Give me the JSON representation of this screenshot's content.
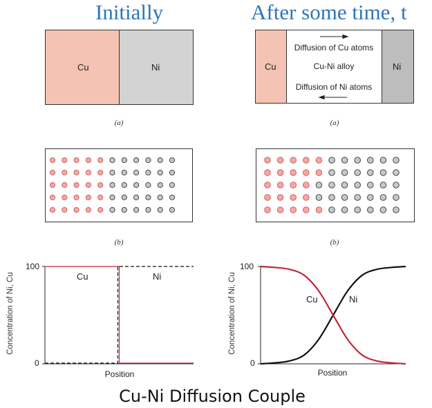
{
  "headings": {
    "left": "Initially",
    "right": "After some time, t"
  },
  "panel_a_left": {
    "cu": "Cu",
    "ni": "Ni",
    "caption": "(a)"
  },
  "panel_a_right": {
    "cu": "Cu",
    "ni": "Ni",
    "top_label": "Diffusion of Cu atoms",
    "middle_label": "Cu-Ni alloy",
    "bottom_label": "Diffusion of Ni atoms",
    "caption": "(a)"
  },
  "panel_b_left": {
    "caption": "(b)"
  },
  "panel_b_right": {
    "caption": "(b)"
  },
  "colors": {
    "cu_fill": "#f4c3b4",
    "ni_fill": "#d3d3d3",
    "ni_dark_fill": "#bdbdbd",
    "cu_dot": "#f3a9a2",
    "cu_dot_stroke": "#c95555",
    "ni_dot": "#c8c8c8",
    "ni_dot_stroke": "#333333",
    "cu_line": "#c0283a",
    "ni_line": "#111111",
    "heading": "#2e75b6"
  },
  "lattice": {
    "rows": 5,
    "left_grid": [
      "cccccnnnnnn",
      "cccccnnnnnn",
      "cccccnnnnnn",
      "cccccnnnnnn",
      "cccccnnnnnn"
    ],
    "right_grid": [
      "cccccnnnnnn",
      "cccccnnnnnn",
      "ccccnnnnnnn",
      "ccccnnnnnnn",
      "cccccnnnnnn"
    ]
  },
  "chart_left": {
    "ylabel": "Concentration of Ni, Cu",
    "xlabel": "Position",
    "y_ticks": [
      "0",
      "100"
    ],
    "series_labels": {
      "cu": "Cu",
      "ni": "Ni"
    }
  },
  "chart_right": {
    "ylabel": "Concentration of Ni, Cu",
    "xlabel": "Position",
    "y_ticks": [
      "0",
      "100"
    ],
    "series_labels": {
      "cu": "Cu",
      "ni": "Ni"
    }
  },
  "chart_data": [
    {
      "type": "line",
      "xlabel": "Position",
      "ylabel": "Concentration of Ni, Cu",
      "ylim": [
        0,
        100
      ],
      "x": [
        0,
        0.5,
        1
      ],
      "series": [
        {
          "name": "Cu",
          "values": [
            100,
            100,
            0
          ],
          "step_at": 0.5
        },
        {
          "name": "Ni",
          "values": [
            0,
            0,
            100
          ],
          "step_at": 0.5
        }
      ]
    },
    {
      "type": "line",
      "xlabel": "Position",
      "ylabel": "Concentration of Ni, Cu",
      "ylim": [
        0,
        100
      ],
      "x": [
        0,
        0.1,
        0.2,
        0.3,
        0.4,
        0.5,
        0.6,
        0.7,
        0.8,
        0.9,
        1.0
      ],
      "series": [
        {
          "name": "Cu",
          "values": [
            100,
            99,
            97,
            91,
            75,
            50,
            25,
            9,
            3,
            1,
            0
          ]
        },
        {
          "name": "Ni",
          "values": [
            0,
            1,
            3,
            9,
            25,
            50,
            75,
            91,
            97,
            99,
            100
          ]
        }
      ]
    }
  ],
  "footer": "Cu-Ni Diffusion Couple"
}
